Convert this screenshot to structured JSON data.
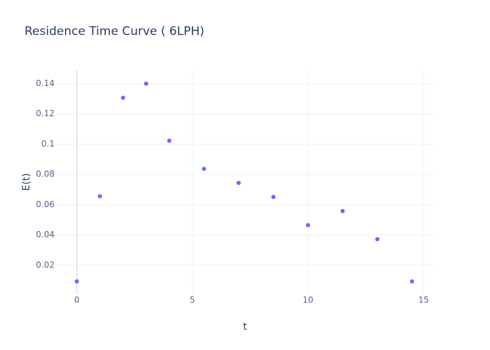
{
  "chart_data": {
    "type": "scatter",
    "title": "Residence Time Curve ( 6LPH)",
    "x_label": "t",
    "y_label": "E(t)",
    "series": [
      {
        "color": "#636efa",
        "x": [
          0,
          1,
          2,
          3,
          4,
          5.5,
          7,
          8.5,
          10,
          11.5,
          13,
          14.5
        ],
        "values": [
          0.0093,
          0.0656,
          0.1307,
          0.14,
          0.1023,
          0.0837,
          0.0744,
          0.0651,
          0.0465,
          0.0558,
          0.0372,
          0.0093
        ]
      }
    ],
    "xlim": [
      -0.9,
      15.45
    ],
    "xticks": [
      0,
      5,
      10,
      15
    ],
    "ylim": [
      0.001,
      0.149
    ],
    "yticks": [
      0.02,
      0.04,
      0.06,
      0.08,
      0.1,
      0.12,
      0.14
    ],
    "grid": true
  }
}
